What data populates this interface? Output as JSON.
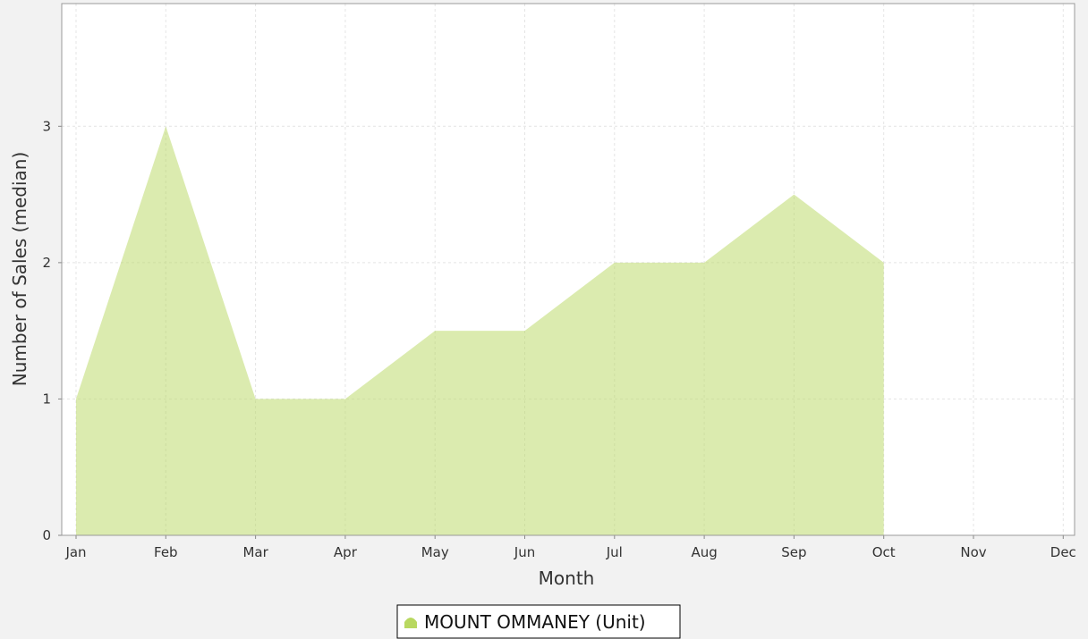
{
  "chart_data": {
    "type": "area",
    "x_label": "Month",
    "y_label": "Number of Sales (median)",
    "categories": [
      "Jan",
      "Feb",
      "Mar",
      "Apr",
      "May",
      "Jun",
      "Jul",
      "Aug",
      "Sep",
      "Oct",
      "Nov",
      "Dec"
    ],
    "series": [
      {
        "name": "MOUNT OMMANEY (Unit)",
        "color": "#b8d860",
        "values": [
          1,
          3,
          1,
          1,
          1.5,
          1.5,
          2,
          2,
          2.5,
          2,
          null,
          null
        ]
      }
    ],
    "ylim": [
      0,
      3.9
    ],
    "yticks": [
      0,
      1,
      2,
      3
    ],
    "grid": true,
    "legend": "bottom"
  }
}
